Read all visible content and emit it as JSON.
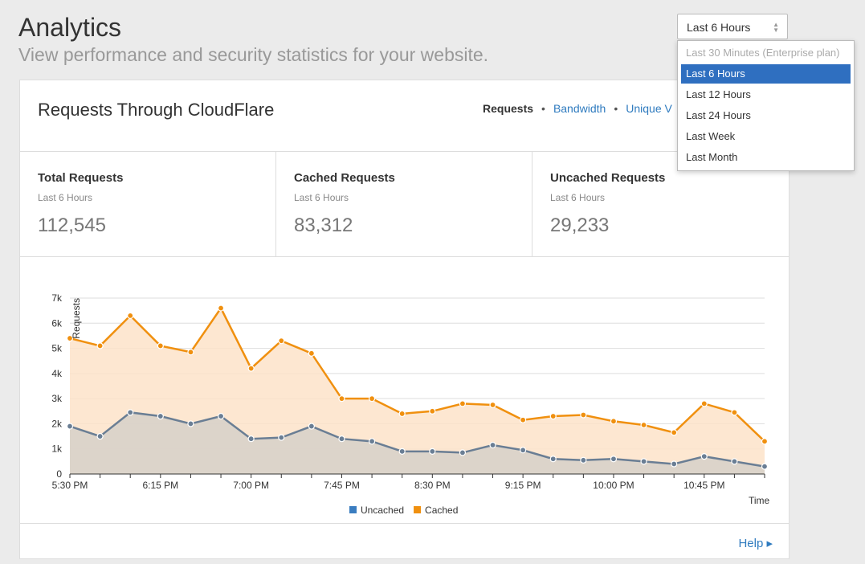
{
  "header": {
    "title": "Analytics",
    "subtitle": "View performance and security statistics for your website."
  },
  "card": {
    "title": "Requests Through CloudFlare",
    "tabs": [
      "Requests",
      "Bandwidth",
      "Unique V"
    ],
    "active_tab": 0,
    "stats": [
      {
        "label": "Total Requests",
        "period": "Last 6 Hours",
        "value": "112,545"
      },
      {
        "label": "Cached Requests",
        "period": "Last 6 Hours",
        "value": "83,312"
      },
      {
        "label": "Uncached Requests",
        "period": "Last 6 Hours",
        "value": "29,233"
      }
    ],
    "help": "Help ▸"
  },
  "time_select": {
    "value": "Last 6 Hours",
    "options": [
      "Last 30 Minutes (Enterprise plan)",
      "Last 6 Hours",
      "Last 12 Hours",
      "Last 24 Hours",
      "Last Week",
      "Last Month"
    ],
    "selected": 1,
    "disabled": [
      0
    ]
  },
  "chart_data": {
    "type": "area",
    "y_label": "Requests",
    "x_label": "Time",
    "categories": [
      "5:30 PM",
      null,
      null,
      "6:15 PM",
      null,
      null,
      "7:00 PM",
      null,
      null,
      "7:45 PM",
      null,
      null,
      "8:30 PM",
      null,
      null,
      "9:15 PM",
      null,
      null,
      "10:00 PM",
      null,
      null,
      "10:45 PM",
      null,
      null
    ],
    "series": [
      {
        "name": "Uncached",
        "color": "#3a7dc0",
        "line_color": "#6a7e94",
        "fill_color": "#d6d0c9",
        "values": [
          1900,
          1500,
          2450,
          2300,
          2000,
          2300,
          1400,
          1450,
          1900,
          1400,
          1300,
          900,
          900,
          850,
          1150,
          950,
          600,
          550,
          600,
          500,
          400,
          700,
          500,
          300
        ]
      },
      {
        "name": "Cached",
        "color": "#f0900f",
        "line_color": "#f0900f",
        "fill_color": "#fde3c9",
        "values": [
          5400,
          5100,
          6300,
          5100,
          4850,
          6600,
          4200,
          5300,
          4800,
          3000,
          3000,
          2400,
          2500,
          2800,
          2750,
          2150,
          2300,
          2350,
          2100,
          1950,
          1650,
          2800,
          2450,
          1300
        ]
      }
    ],
    "ylim": [
      0,
      7000
    ],
    "yticks": [
      0,
      {
        "value": 1000,
        "label": "1k"
      },
      {
        "value": 2000,
        "label": "2k"
      },
      {
        "value": 3000,
        "label": "3k"
      },
      {
        "value": 4000,
        "label": "4k"
      },
      {
        "value": 5000,
        "label": "5k"
      },
      {
        "value": 6000,
        "label": "6k"
      },
      {
        "value": 7000,
        "label": "7k"
      }
    ],
    "grid": true
  }
}
